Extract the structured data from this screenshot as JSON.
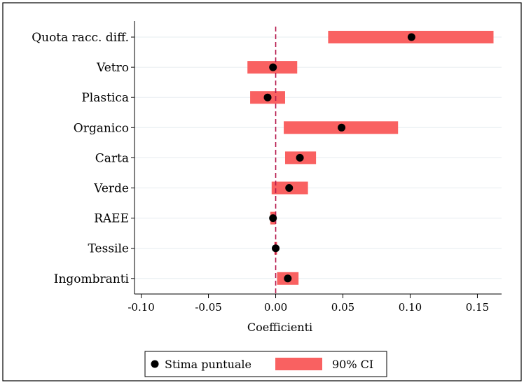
{
  "chart_data": {
    "type": "forest",
    "title": "",
    "xlabel": "Coefficienti",
    "ylabel": "",
    "xlim": [
      -0.105,
      0.168
    ],
    "xticks": [
      -0.1,
      -0.05,
      0,
      0.05,
      0.1,
      0.15
    ],
    "xtick_labels": [
      "-0.10",
      "-0.05",
      "0.00",
      "0.05",
      "0.10",
      "0.15"
    ],
    "reference_line_x": 0,
    "grid": true,
    "legend_position": "bottom",
    "colors": {
      "ci": "#f96161",
      "point": "#000000",
      "reference": "#b5174a",
      "grid": "#e6ecef"
    },
    "categories": [
      "Quota racc. diff.",
      "Vetro",
      "Plastica",
      "Organico",
      "Carta",
      "Verde",
      "RAEE",
      "Tessile",
      "Ingombranti"
    ],
    "estimates": [
      0.101,
      -0.002,
      -0.006,
      0.049,
      0.018,
      0.01,
      -0.002,
      0.0,
      0.009
    ],
    "ci_low": [
      0.039,
      -0.021,
      -0.019,
      0.006,
      0.007,
      -0.003,
      -0.004,
      -0.001,
      0.001
    ],
    "ci_high": [
      0.162,
      0.016,
      0.007,
      0.091,
      0.03,
      0.024,
      0.0,
      0.001,
      0.017
    ],
    "legend": [
      {
        "key": "point",
        "label": "Stima puntuale"
      },
      {
        "key": "ci",
        "label": "90% CI"
      }
    ]
  }
}
